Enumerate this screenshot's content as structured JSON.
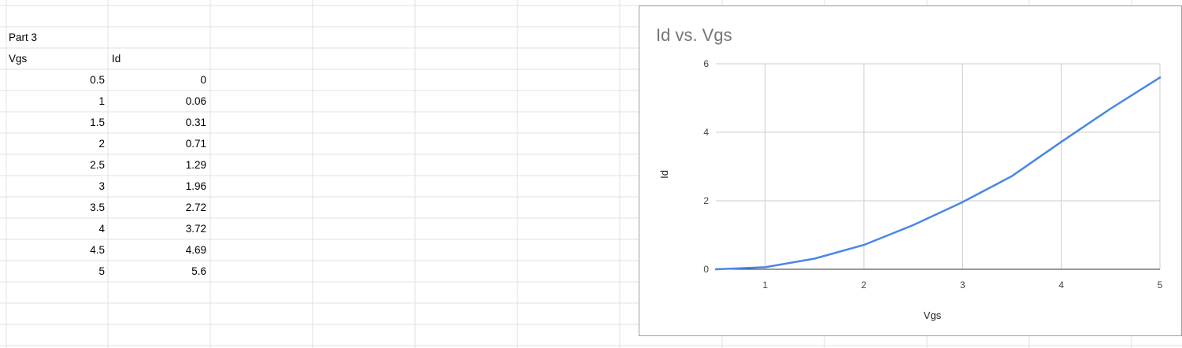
{
  "sheet": {
    "part_label": "Part 3",
    "headers": {
      "vgs": "Vgs",
      "id": "Id"
    },
    "rows": [
      {
        "vgs": "0.5",
        "id": "0"
      },
      {
        "vgs": "1",
        "id": "0.06"
      },
      {
        "vgs": "1.5",
        "id": "0.31"
      },
      {
        "vgs": "2",
        "id": "0.71"
      },
      {
        "vgs": "2.5",
        "id": "1.29"
      },
      {
        "vgs": "3",
        "id": "1.96"
      },
      {
        "vgs": "3.5",
        "id": "2.72"
      },
      {
        "vgs": "4",
        "id": "3.72"
      },
      {
        "vgs": "4.5",
        "id": "4.69"
      },
      {
        "vgs": "5",
        "id": "5.6"
      }
    ]
  },
  "chart_data": {
    "type": "line",
    "title": "Id vs. Vgs",
    "xlabel": "Vgs",
    "ylabel": "Id",
    "x": [
      0.5,
      1,
      1.5,
      2,
      2.5,
      3,
      3.5,
      4,
      4.5,
      5
    ],
    "series": [
      {
        "values": [
          0,
          0.06,
          0.31,
          0.71,
          1.29,
          1.96,
          2.72,
          3.72,
          4.69,
          5.6
        ]
      }
    ],
    "xlim": [
      0.5,
      5
    ],
    "ylim": [
      0,
      6
    ],
    "xticks": [
      "1",
      "2",
      "3",
      "4",
      "5"
    ],
    "yticks": [
      "0",
      "2",
      "4",
      "6"
    ],
    "grid": true,
    "line_color": "#4a86e8"
  }
}
